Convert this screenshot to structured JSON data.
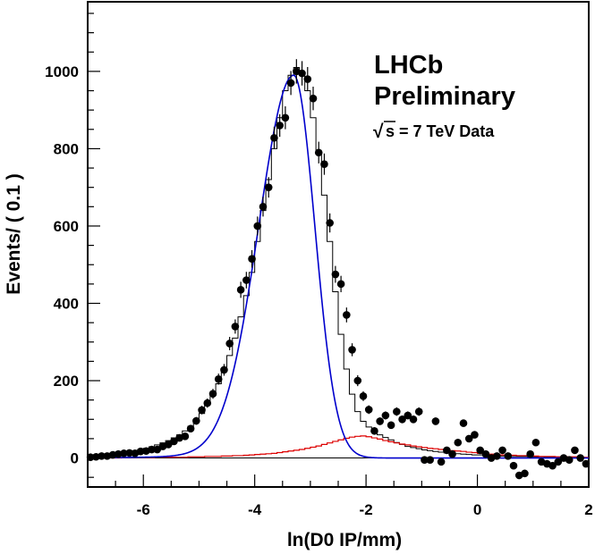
{
  "chart_data": {
    "type": "scatter",
    "xlabel": "ln(D0 IP/mm)",
    "ylabel": "Events/ ( 0.1 )",
    "xlim": [
      -7,
      2
    ],
    "ylim": [
      -75,
      1180
    ],
    "x_ticks": [
      -6,
      -4,
      -2,
      0,
      2
    ],
    "y_ticks": [
      0,
      200,
      400,
      600,
      800,
      1000
    ],
    "annotations": {
      "line1": "LHCb",
      "line2": "Preliminary",
      "sqrt_symbol": "√",
      "energy_label": "s = 7 TeV Data"
    },
    "series": [
      {
        "kind": "data-points",
        "x": [
          -6.95,
          -6.85,
          -6.75,
          -6.65,
          -6.55,
          -6.45,
          -6.35,
          -6.25,
          -6.15,
          -6.05,
          -5.95,
          -5.85,
          -5.75,
          -5.65,
          -5.55,
          -5.45,
          -5.35,
          -5.25,
          -5.15,
          -5.05,
          -4.95,
          -4.85,
          -4.75,
          -4.65,
          -4.55,
          -4.45,
          -4.35,
          -4.25,
          -4.15,
          -4.05,
          -3.95,
          -3.85,
          -3.75,
          -3.65,
          -3.55,
          -3.45,
          -3.35,
          -3.25,
          -3.15,
          -3.05,
          -2.95,
          -2.85,
          -2.75,
          -2.65,
          -2.55,
          -2.45,
          -2.35,
          -2.25,
          -2.15,
          -2.05,
          -1.95,
          -1.85,
          -1.75,
          -1.65,
          -1.55,
          -1.45,
          -1.35,
          -1.25,
          -1.15,
          -1.05,
          -0.95,
          -0.85,
          -0.75,
          -0.65,
          -0.55,
          -0.45,
          -0.35,
          -0.25,
          -0.15,
          -0.05,
          0.05,
          0.15,
          0.25,
          0.35,
          0.45,
          0.55,
          0.65,
          0.75,
          0.85,
          0.95,
          1.05,
          1.15,
          1.25,
          1.35,
          1.45,
          1.55,
          1.65,
          1.75,
          1.85,
          1.95
        ],
        "y": [
          2,
          3,
          5,
          5,
          8,
          10,
          12,
          13,
          12,
          17,
          18,
          22,
          22,
          30,
          35,
          43,
          52,
          56,
          76,
          96,
          124,
          142,
          166,
          204,
          228,
          296,
          340,
          435,
          460,
          515,
          600,
          650,
          700,
          828,
          860,
          880,
          970,
          1000,
          995,
          980,
          930,
          790,
          760,
          608,
          475,
          450,
          370,
          280,
          200,
          160,
          125,
          70,
          95,
          110,
          85,
          120,
          100,
          110,
          100,
          120,
          -5,
          -5,
          95,
          -10,
          20,
          10,
          40,
          90,
          50,
          60,
          20,
          10,
          0,
          5,
          20,
          5,
          -20,
          -45,
          -40,
          10,
          40,
          -10,
          -15,
          -20,
          -10,
          0,
          -5,
          20,
          0,
          -15
        ]
      },
      {
        "kind": "histogram-step",
        "color": "#000000",
        "x": [
          -6.95,
          -6.85,
          -6.75,
          -6.65,
          -6.55,
          -6.45,
          -6.35,
          -6.25,
          -6.15,
          -6.05,
          -5.95,
          -5.85,
          -5.75,
          -5.65,
          -5.55,
          -5.45,
          -5.35,
          -5.25,
          -5.15,
          -5.05,
          -4.95,
          -4.85,
          -4.75,
          -4.65,
          -4.55,
          -4.45,
          -4.35,
          -4.25,
          -4.15,
          -4.05,
          -3.95,
          -3.85,
          -3.75,
          -3.65,
          -3.55,
          -3.45,
          -3.35,
          -3.25,
          -3.15,
          -3.05,
          -2.95,
          -2.85,
          -2.75,
          -2.65,
          -2.55,
          -2.45,
          -2.35,
          -2.25,
          -2.15,
          -2.05,
          -1.95,
          -1.85,
          -1.75,
          -1.65,
          -1.55,
          -1.45,
          -1.35,
          -1.25,
          -1.15,
          -1.05,
          -0.95,
          -0.85,
          -0.75,
          -0.65,
          -0.55,
          -0.45,
          -0.35,
          -0.25,
          -0.15,
          -0.05,
          0.05,
          0.15,
          0.25,
          0.35,
          0.45,
          0.55,
          0.65,
          0.75,
          0.85,
          0.95,
          1.05,
          1.15,
          1.25,
          1.35,
          1.45,
          1.55,
          1.65,
          1.75,
          1.85,
          1.95
        ],
        "y": [
          3,
          5,
          6,
          7,
          9,
          11,
          14,
          16,
          19,
          22,
          25,
          29,
          34,
          39,
          45,
          52,
          60,
          70,
          82,
          96,
          115,
          138,
          163,
          192,
          225,
          265,
          310,
          365,
          420,
          480,
          560,
          640,
          720,
          800,
          880,
          950,
          990,
          1010,
          990,
          950,
          880,
          790,
          680,
          560,
          430,
          320,
          230,
          165,
          120,
          95,
          80,
          70,
          60,
          53,
          47,
          40,
          35,
          30,
          27,
          24,
          21,
          19,
          17,
          15,
          13,
          12,
          11,
          10,
          9,
          8,
          8,
          7,
          6,
          6,
          5,
          5,
          4,
          4,
          4,
          3,
          3,
          3,
          2,
          2,
          2,
          2,
          2,
          1,
          1,
          1
        ]
      },
      {
        "kind": "fit-curve",
        "color": "#0000cc",
        "peak_x": -3.3,
        "peak_y": 990
      },
      {
        "kind": "background-histogram",
        "color": "#dd0000",
        "x": [
          -6.95,
          -6.85,
          -6.75,
          -6.65,
          -6.55,
          -6.45,
          -6.35,
          -6.25,
          -6.15,
          -6.05,
          -5.95,
          -5.85,
          -5.75,
          -5.65,
          -5.55,
          -5.45,
          -5.35,
          -5.25,
          -5.15,
          -5.05,
          -4.95,
          -4.85,
          -4.75,
          -4.65,
          -4.55,
          -4.45,
          -4.35,
          -4.25,
          -4.15,
          -4.05,
          -3.95,
          -3.85,
          -3.75,
          -3.65,
          -3.55,
          -3.45,
          -3.35,
          -3.25,
          -3.15,
          -3.05,
          -2.95,
          -2.85,
          -2.75,
          -2.65,
          -2.55,
          -2.45,
          -2.35,
          -2.25,
          -2.15,
          -2.05,
          -1.95,
          -1.85,
          -1.75,
          -1.65,
          -1.55,
          -1.45,
          -1.35,
          -1.25,
          -1.15,
          -1.05,
          -0.95,
          -0.85,
          -0.75,
          -0.65,
          -0.55,
          -0.45,
          -0.35,
          -0.25,
          -0.15,
          -0.05,
          0.05,
          0.15,
          0.25,
          0.35,
          0.45,
          0.55,
          0.65,
          0.75,
          0.85,
          0.95,
          1.05,
          1.15,
          1.25,
          1.35,
          1.45,
          1.55,
          1.65,
          1.75,
          1.85,
          1.95
        ],
        "y": [
          0,
          0,
          0,
          0,
          0,
          0,
          1,
          1,
          1,
          1,
          1,
          1,
          2,
          2,
          2,
          2,
          2,
          2,
          3,
          3,
          3,
          4,
          4,
          4,
          5,
          5,
          6,
          6,
          7,
          8,
          9,
          10,
          11,
          12,
          14,
          16,
          18,
          20,
          22,
          25,
          28,
          31,
          35,
          39,
          43,
          47,
          51,
          54,
          56,
          57,
          55,
          52,
          49,
          45,
          42,
          39,
          36,
          34,
          31,
          29,
          27,
          25,
          24,
          22,
          21,
          19,
          18,
          17,
          15,
          14,
          12,
          11,
          10,
          9,
          8,
          8,
          7,
          6,
          6,
          5,
          5,
          4,
          4,
          4,
          3,
          3,
          3,
          3,
          2,
          2
        ]
      }
    ]
  }
}
